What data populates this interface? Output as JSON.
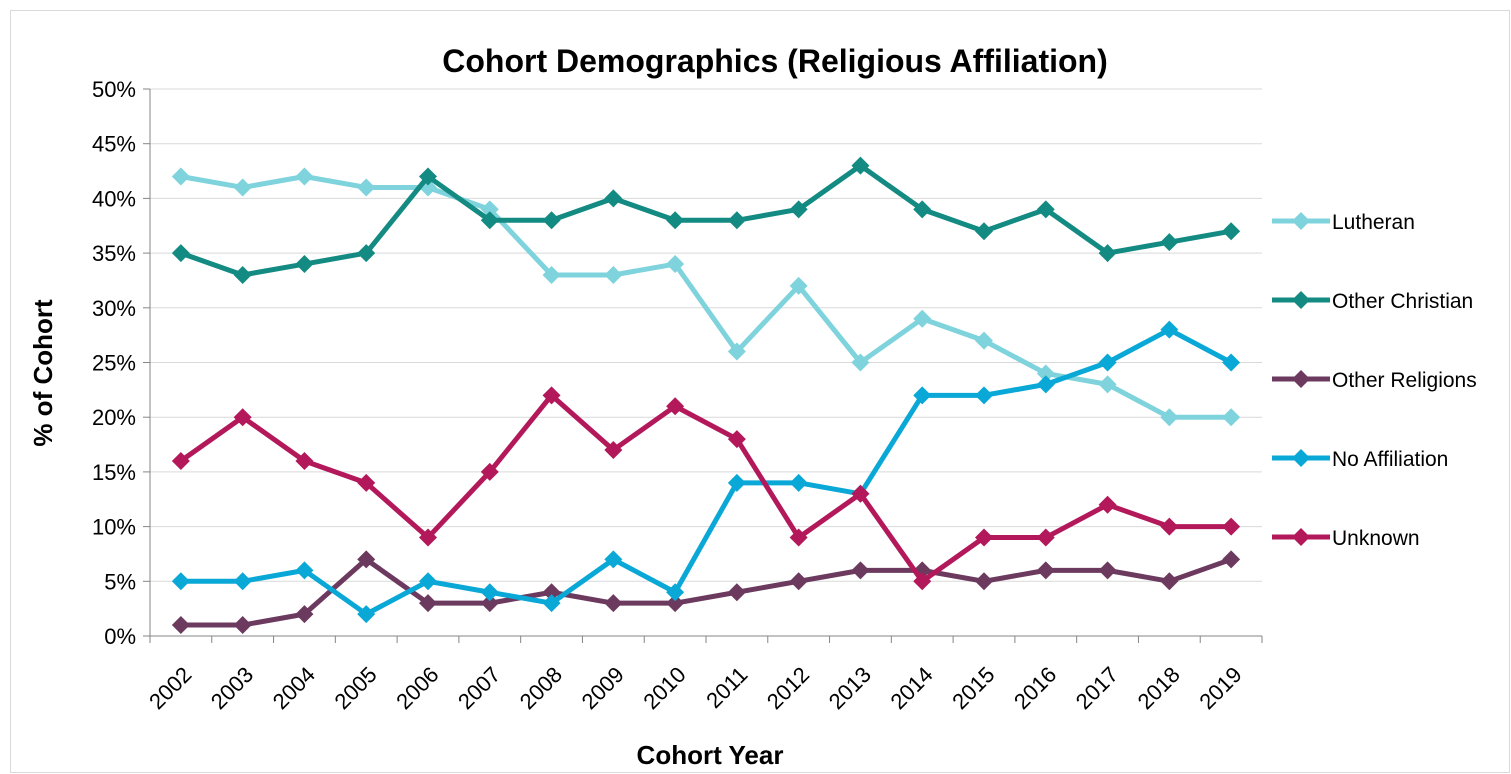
{
  "chart_data": {
    "type": "line",
    "title": "Cohort Demographics (Religious Affiliation)",
    "xlabel": "Cohort Year",
    "ylabel": "% of Cohort",
    "categories": [
      "2002",
      "2003",
      "2004",
      "2005",
      "2006",
      "2007",
      "2008",
      "2009",
      "2010",
      "2011",
      "2012",
      "2013",
      "2014",
      "2015",
      "2016",
      "2017",
      "2018",
      "2019"
    ],
    "ylim": [
      0,
      50
    ],
    "yticks": [
      "0%",
      "5%",
      "10%",
      "15%",
      "20%",
      "25%",
      "30%",
      "35%",
      "40%",
      "45%",
      "50%"
    ],
    "grid": true,
    "legend_position": "right",
    "series": [
      {
        "name": "Lutheran",
        "color": "#7ed3dc",
        "values": [
          42,
          41,
          42,
          41,
          41,
          39,
          33,
          33,
          34,
          26,
          32,
          25,
          29,
          27,
          24,
          23,
          20,
          20
        ]
      },
      {
        "name": "Other Christian",
        "color": "#138a82",
        "values": [
          35,
          33,
          34,
          35,
          42,
          38,
          38,
          40,
          38,
          38,
          39,
          43,
          39,
          37,
          39,
          35,
          36,
          37
        ]
      },
      {
        "name": "Other Religions",
        "color": "#6b3a5e",
        "values": [
          1,
          1,
          2,
          7,
          3,
          3,
          4,
          3,
          3,
          4,
          5,
          6,
          6,
          5,
          6,
          6,
          5,
          7
        ]
      },
      {
        "name": "No Affiliation",
        "color": "#0aa8d6",
        "values": [
          5,
          5,
          6,
          2,
          5,
          4,
          3,
          7,
          4,
          14,
          14,
          13,
          22,
          22,
          23,
          25,
          28,
          25
        ]
      },
      {
        "name": "Unknown",
        "color": "#b3195a",
        "values": [
          16,
          20,
          16,
          14,
          9,
          15,
          22,
          17,
          21,
          18,
          9,
          13,
          5,
          9,
          9,
          12,
          10,
          10
        ]
      }
    ]
  }
}
